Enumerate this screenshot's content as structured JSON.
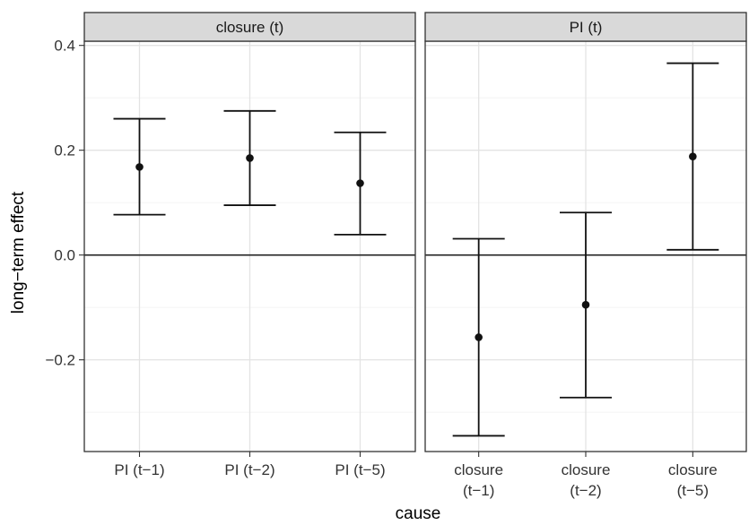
{
  "chart_data": {
    "type": "errorbar",
    "xlabel": "cause",
    "ylabel": "long−term effect",
    "ylim": [
      -0.375,
      0.408
    ],
    "yticks": [
      {
        "value": 0.4,
        "label": "0.4"
      },
      {
        "value": 0.2,
        "label": "0.2"
      },
      {
        "value": 0.0,
        "label": "0.0"
      },
      {
        "value": -0.2,
        "label": "−0.2"
      }
    ],
    "reference_line": 0,
    "grid": true,
    "panels": [
      {
        "strip": "closure (t)",
        "categories": [
          "PI (t−1)",
          "PI (t−2)",
          "PI (t−5)"
        ],
        "estimate": [
          0.168,
          0.185,
          0.137
        ],
        "lower": [
          0.077,
          0.095,
          0.039
        ],
        "upper": [
          0.26,
          0.275,
          0.234
        ]
      },
      {
        "strip": "PI (t)",
        "categories": [
          "closure\n(t−1)",
          "closure\n(t−2)",
          "closure\n(t−5)"
        ],
        "estimate": [
          -0.157,
          -0.095,
          0.188
        ],
        "lower": [
          -0.345,
          -0.272,
          0.01
        ],
        "upper": [
          0.031,
          0.081,
          0.366
        ]
      }
    ]
  }
}
